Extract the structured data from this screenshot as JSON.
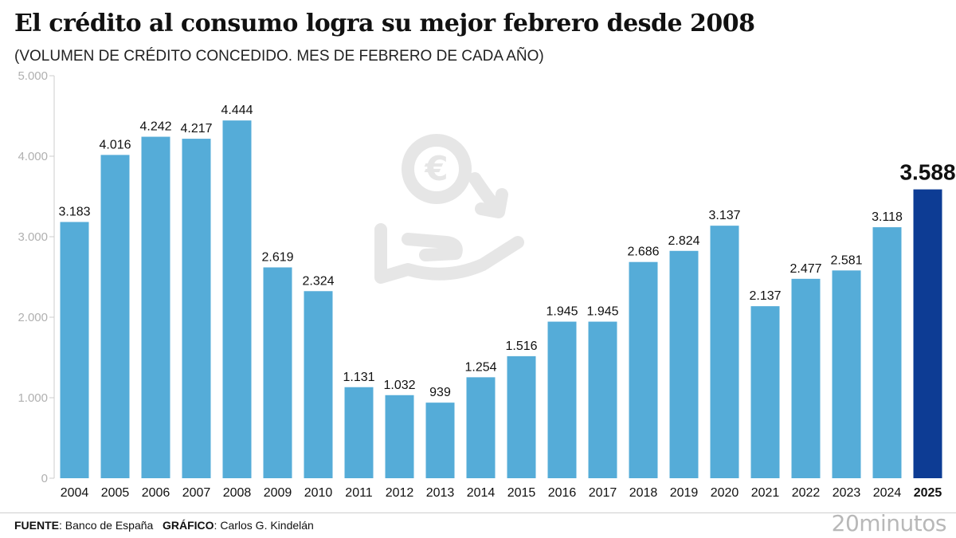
{
  "title": "El crédito al consumo logra su mejor febrero desde 2008",
  "subtitle": "(VOLUMEN DE CRÉDITO CONCEDIDO. MES DE FEBRERO DE CADA AÑO)",
  "footer": {
    "source_label": "FUENTE",
    "source_value": "Banco de España",
    "graphic_label": "GRÁFICO",
    "graphic_value": "Carlos G. Kindelán"
  },
  "brand": "20minutos",
  "watermark_icon": "euro-coin-hand-icon",
  "colors": {
    "bar": "#55acd8",
    "highlight": "#0d3c94",
    "axis_text": "#b0b0b0",
    "grid": "#cccccc"
  },
  "chart_data": {
    "type": "bar",
    "categories": [
      "2004",
      "2005",
      "2006",
      "2007",
      "2008",
      "2009",
      "2010",
      "2011",
      "2012",
      "2013",
      "2014",
      "2015",
      "2016",
      "2017",
      "2018",
      "2019",
      "2020",
      "2021",
      "2022",
      "2023",
      "2024",
      "2025"
    ],
    "values": [
      3183,
      4016,
      4242,
      4217,
      4444,
      2619,
      2324,
      1131,
      1032,
      939,
      1254,
      1516,
      1945,
      1945,
      2686,
      2824,
      3137,
      2137,
      2477,
      2581,
      3118,
      3588
    ],
    "value_labels": [
      "3.183",
      "4.016",
      "4.242",
      "4.217",
      "4.444",
      "2.619",
      "2.324",
      "1.131",
      "1.032",
      "939",
      "1.254",
      "1.516",
      "1.945",
      "1.945",
      "2.686",
      "2.824",
      "3.137",
      "2.137",
      "2.477",
      "2.581",
      "3.118",
      "3.588"
    ],
    "y_ticks": [
      0,
      1000,
      2000,
      3000,
      4000,
      5000
    ],
    "y_tick_labels": [
      "0",
      "1.000",
      "2.000",
      "3.000",
      "4.000",
      "5.000"
    ],
    "ylim": [
      0,
      5000
    ],
    "highlight_category": "2025",
    "grid": false
  }
}
